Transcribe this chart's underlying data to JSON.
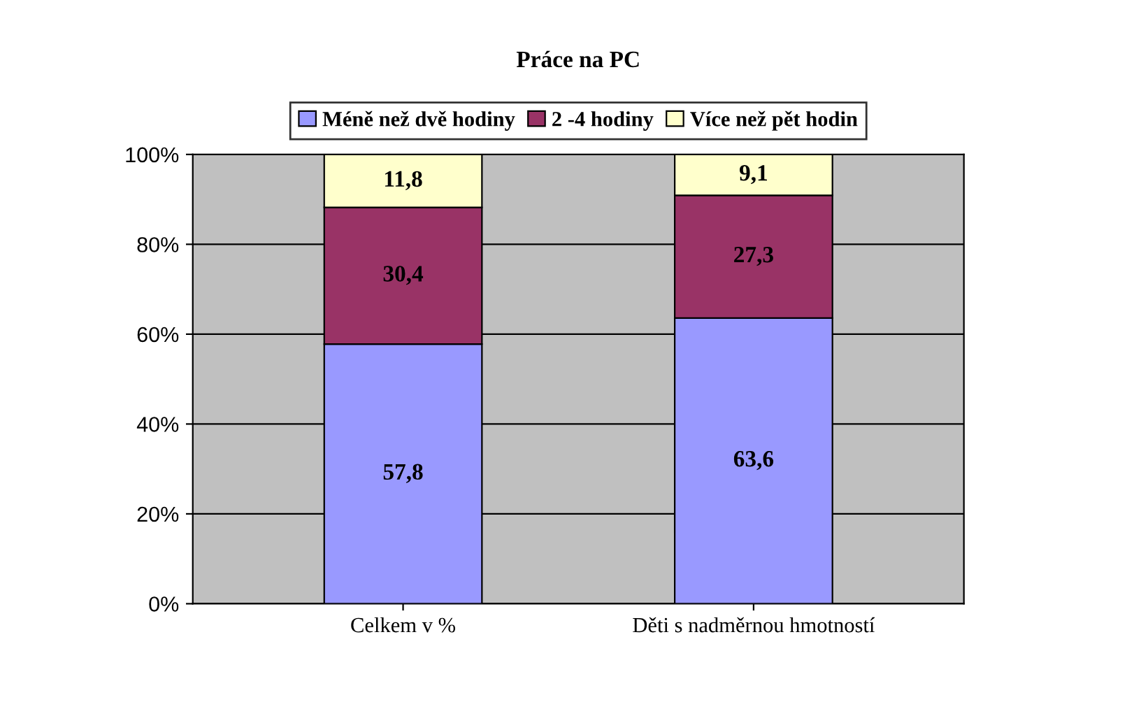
{
  "chart_data": {
    "type": "bar",
    "title": "Práce na PC",
    "categories": [
      "Celkem v %",
      "Děti s nadměrnou hmotností"
    ],
    "stacked": true,
    "series": [
      {
        "name": "Méně než dvě hodiny",
        "color": "#9999ff",
        "values": [
          57.8,
          63.6
        ],
        "value_labels": [
          "57,8",
          "63,6"
        ]
      },
      {
        "name": "2 -4 hodiny",
        "color": "#993366",
        "values": [
          30.4,
          27.3
        ],
        "value_labels": [
          "30,4",
          "27,3"
        ]
      },
      {
        "name": "Více než pět hodin",
        "color": "#ffffcc",
        "values": [
          11.8,
          9.1
        ],
        "value_labels": [
          "11,8",
          "9,1"
        ]
      }
    ],
    "ylim": [
      0,
      100
    ],
    "yticks": [
      {
        "value": 0,
        "label": "0%"
      },
      {
        "value": 20,
        "label": "20%"
      },
      {
        "value": 40,
        "label": "40%"
      },
      {
        "value": 60,
        "label": "60%"
      },
      {
        "value": 80,
        "label": "80%"
      },
      {
        "value": 100,
        "label": "100%"
      }
    ],
    "grid": "y",
    "legend": "top"
  }
}
